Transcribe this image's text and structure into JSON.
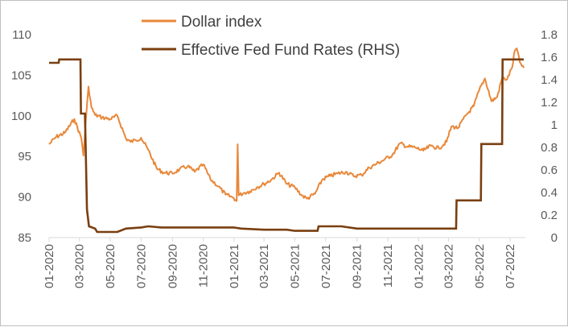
{
  "chart_data": {
    "type": "line",
    "title": "",
    "xlabel": "",
    "ylabel": "",
    "grid": false,
    "legend_placement": "top-center",
    "x_tick_labels": [
      "01-2020",
      "03-2020",
      "05-2020",
      "07-2020",
      "09-2020",
      "11-2020",
      "01-2021",
      "03-2021",
      "05-2021",
      "07-2021",
      "09-2021",
      "11-2021",
      "01-2022",
      "03-2022",
      "05-2022",
      "07-2022"
    ],
    "y_left": {
      "ticks": [
        "85",
        "90",
        "95",
        "100",
        "105",
        "110"
      ],
      "range": [
        85,
        110
      ]
    },
    "y_right": {
      "ticks": [
        "0",
        "0.2",
        "0.4",
        "0.6",
        "0.8",
        "1",
        "1.2",
        "1.4",
        "1.6",
        "1.8"
      ],
      "range": [
        0,
        1.8
      ]
    },
    "series": [
      {
        "name": "Dollar index",
        "axis": "left",
        "color": "#e8883a",
        "x": [
          "2020-01-01",
          "2020-01-15",
          "2020-02-01",
          "2020-02-20",
          "2020-03-05",
          "2020-03-09",
          "2020-03-13",
          "2020-03-19",
          "2020-03-25",
          "2020-04-01",
          "2020-04-15",
          "2020-05-01",
          "2020-05-15",
          "2020-06-01",
          "2020-06-10",
          "2020-06-20",
          "2020-07-01",
          "2020-07-15",
          "2020-08-01",
          "2020-08-15",
          "2020-09-01",
          "2020-09-15",
          "2020-10-01",
          "2020-10-15",
          "2020-11-01",
          "2020-11-15",
          "2020-12-01",
          "2020-12-15",
          "2020-12-31",
          "2021-01-06",
          "2021-01-08",
          "2021-01-10",
          "2021-01-20",
          "2021-02-01",
          "2021-02-15",
          "2021-03-01",
          "2021-03-15",
          "2021-03-31",
          "2021-04-15",
          "2021-05-01",
          "2021-05-15",
          "2021-05-25",
          "2021-06-10",
          "2021-06-25",
          "2021-07-10",
          "2021-07-25",
          "2021-08-10",
          "2021-08-25",
          "2021-09-10",
          "2021-09-25",
          "2021-10-10",
          "2021-10-25",
          "2021-11-10",
          "2021-11-25",
          "2021-12-10",
          "2021-12-25",
          "2022-01-10",
          "2022-01-25",
          "2022-02-10",
          "2022-02-25",
          "2022-03-07",
          "2022-03-20",
          "2022-04-05",
          "2022-04-20",
          "2022-05-01",
          "2022-05-12",
          "2022-05-25",
          "2022-06-05",
          "2022-06-15",
          "2022-06-25",
          "2022-07-05",
          "2022-07-10",
          "2022-07-14",
          "2022-07-20",
          "2022-07-28"
        ],
        "values": [
          96.5,
          97.4,
          97.9,
          99.6,
          97.2,
          95.1,
          98.8,
          103.6,
          101.0,
          100.1,
          99.8,
          99.6,
          100.0,
          97.2,
          96.8,
          97.0,
          97.3,
          95.8,
          93.5,
          93.0,
          92.9,
          93.4,
          93.8,
          93.1,
          94.0,
          92.2,
          91.3,
          90.3,
          89.9,
          89.5,
          96.5,
          90.2,
          90.5,
          90.7,
          91.2,
          91.6,
          92.1,
          93.0,
          91.6,
          91.2,
          90.2,
          89.8,
          90.4,
          92.2,
          92.6,
          92.9,
          93.1,
          92.6,
          92.7,
          93.6,
          94.1,
          94.6,
          95.2,
          96.6,
          96.2,
          96.1,
          95.7,
          96.3,
          96.0,
          96.8,
          98.7,
          98.5,
          100.1,
          101.2,
          103.2,
          104.6,
          101.8,
          102.3,
          104.6,
          104.5,
          106.0,
          108.0,
          108.3,
          106.6,
          105.9
        ]
      },
      {
        "name": "Effective Fed Fund Rates (RHS)",
        "axis": "right",
        "color": "#7a3f10",
        "x": [
          "2020-01-01",
          "2020-01-20",
          "2020-01-21",
          "2020-02-28",
          "2020-03-03",
          "2020-03-04",
          "2020-03-12",
          "2020-03-16",
          "2020-03-20",
          "2020-04-01",
          "2020-04-05",
          "2020-05-15",
          "2020-06-01",
          "2020-07-01",
          "2020-07-15",
          "2020-08-10",
          "2020-10-01",
          "2020-12-31",
          "2021-01-15",
          "2021-03-01",
          "2021-04-15",
          "2021-05-01",
          "2021-06-15",
          "2021-06-17",
          "2021-08-01",
          "2021-09-01",
          "2021-12-01",
          "2022-03-16",
          "2022-03-17",
          "2022-05-04",
          "2022-05-05",
          "2022-06-15",
          "2022-06-16",
          "2022-07-28"
        ],
        "values": [
          1.55,
          1.55,
          1.58,
          1.58,
          1.58,
          1.1,
          1.1,
          0.25,
          0.1,
          0.08,
          0.05,
          0.05,
          0.08,
          0.09,
          0.1,
          0.09,
          0.09,
          0.09,
          0.08,
          0.07,
          0.07,
          0.06,
          0.06,
          0.1,
          0.1,
          0.08,
          0.08,
          0.08,
          0.33,
          0.33,
          0.83,
          0.83,
          1.58,
          1.58
        ]
      }
    ]
  }
}
